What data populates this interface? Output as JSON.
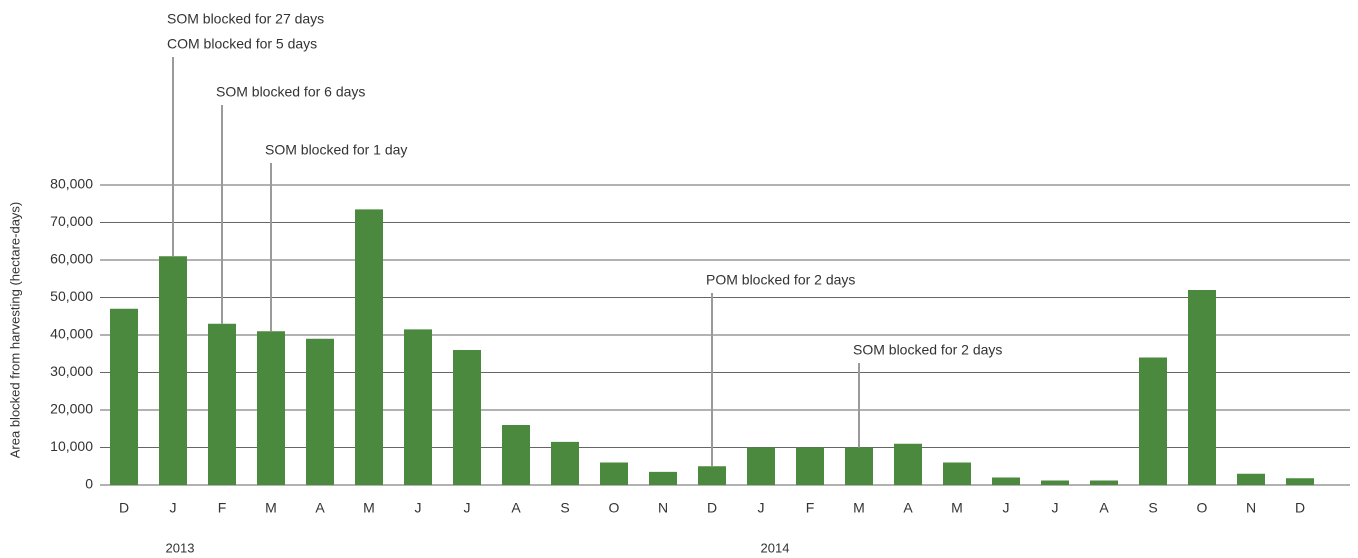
{
  "chart_data": {
    "type": "bar",
    "y_label": "Area blocked from harvesting (hectare-days)",
    "categories": [
      "D",
      "J",
      "F",
      "M",
      "A",
      "M",
      "J",
      "J",
      "A",
      "S",
      "O",
      "N",
      "D",
      "J",
      "F",
      "M",
      "A",
      "M",
      "J",
      "J",
      "A",
      "S",
      "O",
      "N",
      "D"
    ],
    "values": [
      47000,
      61000,
      43000,
      41000,
      39000,
      73500,
      41500,
      36000,
      16000,
      11500,
      6000,
      3500,
      5000,
      10000,
      10000,
      10000,
      11000,
      6000,
      2000,
      1200,
      1200,
      34000,
      52000,
      3000,
      1800
    ],
    "color": "#4b8a3e",
    "ylim": [
      0,
      80000
    ],
    "yticks": [
      0,
      {
        "value": 10000,
        "label": "10,000"
      },
      {
        "value": 20000,
        "label": "20,000"
      },
      {
        "value": 30000,
        "label": "30,000"
      },
      {
        "value": 40000,
        "label": "40,000"
      },
      {
        "value": 50000,
        "label": "50,000"
      },
      {
        "value": 60000,
        "label": "60,000"
      },
      {
        "value": 70000,
        "label": "70,000"
      },
      {
        "value": 80000,
        "label": "80,000"
      }
    ],
    "grid": true,
    "year_labels": [
      "2013",
      "2014"
    ],
    "annotations": [
      [
        "SOM blocked for 27 days",
        "COM blocked for 5 days"
      ],
      [
        "SOM blocked for 6 days"
      ],
      [
        "SOM blocked for 1 day"
      ],
      [
        "POM blocked for 2 days"
      ],
      [
        "SOM blocked for 2 days"
      ]
    ]
  }
}
